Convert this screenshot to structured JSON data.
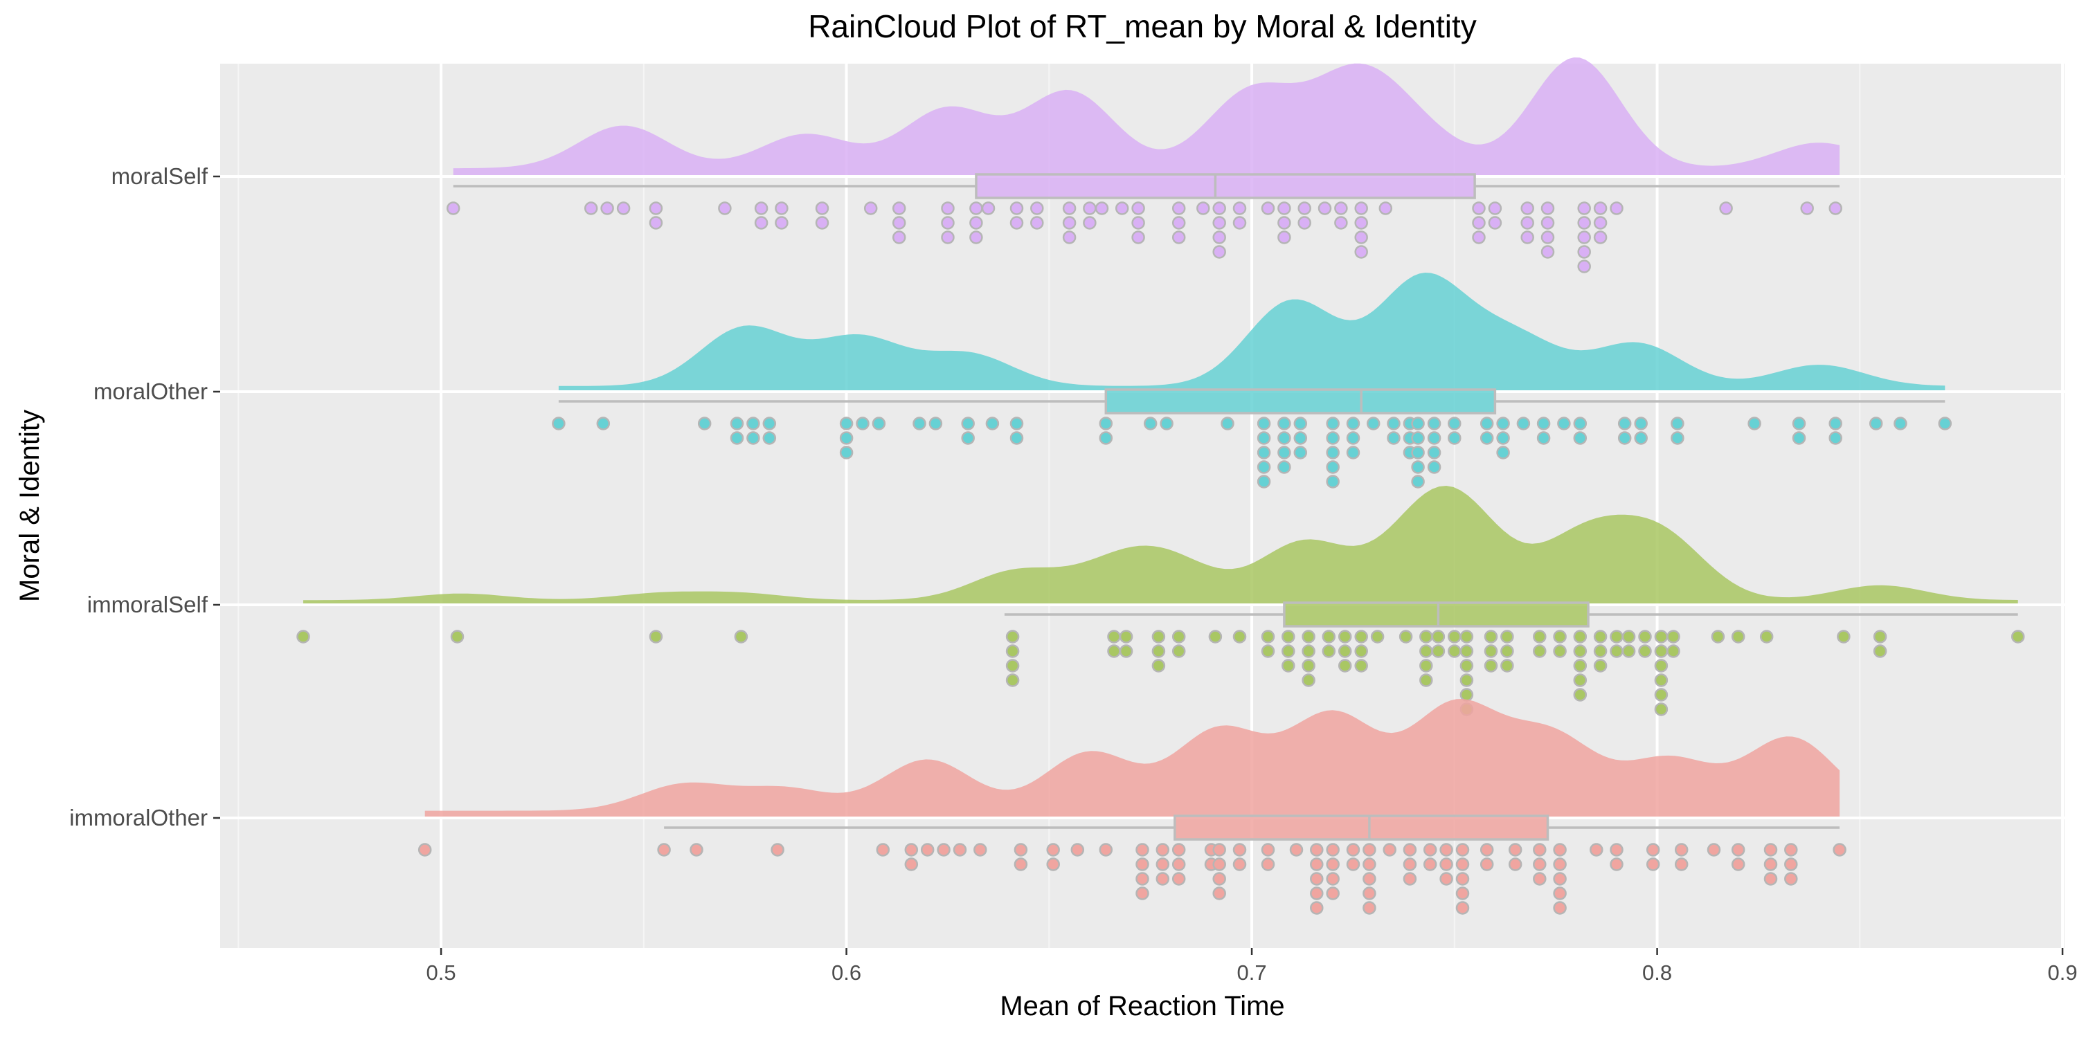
{
  "chart_data": {
    "type": "raincloud",
    "title": "RainCloud Plot of RT_mean by Moral & Identity",
    "xlabel": "Mean of Reaction Time",
    "ylabel": "Moral & Identity",
    "xlim": [
      0.4455,
      0.9005
    ],
    "x_ticks": [
      0.5,
      0.6,
      0.7,
      0.8,
      0.9
    ],
    "x_tick_labels": [
      "0.5",
      "0.6",
      "0.7",
      "0.8",
      "0.9"
    ],
    "grid": true,
    "categories": [
      "moralSelf",
      "moralOther",
      "immoralSelf",
      "immoralOther"
    ],
    "series": [
      {
        "name": "moralSelf",
        "color": "#d9b0f5",
        "box": {
          "whisker_low": 0.503,
          "q1": 0.632,
          "median": 0.691,
          "q3": 0.755,
          "whisker_high": 0.845
        },
        "density_range": [
          0.503,
          0.845
        ],
        "density_peaks": [
          [
            0.545,
            0.25
          ],
          [
            0.59,
            0.2
          ],
          [
            0.625,
            0.35
          ],
          [
            0.655,
            0.45
          ],
          [
            0.7,
            0.45
          ],
          [
            0.725,
            0.5
          ],
          [
            0.74,
            0.2
          ],
          [
            0.78,
            0.65
          ],
          [
            0.84,
            0.15
          ]
        ],
        "points": [
          {
            "x": 0.503,
            "n": 1
          },
          {
            "x": 0.537,
            "n": 1
          },
          {
            "x": 0.541,
            "n": 1
          },
          {
            "x": 0.545,
            "n": 1
          },
          {
            "x": 0.553,
            "n": 2
          },
          {
            "x": 0.57,
            "n": 1
          },
          {
            "x": 0.579,
            "n": 2
          },
          {
            "x": 0.584,
            "n": 2
          },
          {
            "x": 0.594,
            "n": 2
          },
          {
            "x": 0.606,
            "n": 1
          },
          {
            "x": 0.613,
            "n": 3
          },
          {
            "x": 0.625,
            "n": 3
          },
          {
            "x": 0.632,
            "n": 3
          },
          {
            "x": 0.635,
            "n": 1
          },
          {
            "x": 0.642,
            "n": 2
          },
          {
            "x": 0.647,
            "n": 2
          },
          {
            "x": 0.655,
            "n": 3
          },
          {
            "x": 0.66,
            "n": 2
          },
          {
            "x": 0.663,
            "n": 1
          },
          {
            "x": 0.668,
            "n": 1
          },
          {
            "x": 0.672,
            "n": 3
          },
          {
            "x": 0.682,
            "n": 3
          },
          {
            "x": 0.688,
            "n": 1
          },
          {
            "x": 0.692,
            "n": 4
          },
          {
            "x": 0.697,
            "n": 2
          },
          {
            "x": 0.704,
            "n": 1
          },
          {
            "x": 0.708,
            "n": 3
          },
          {
            "x": 0.713,
            "n": 2
          },
          {
            "x": 0.718,
            "n": 1
          },
          {
            "x": 0.722,
            "n": 2
          },
          {
            "x": 0.727,
            "n": 4
          },
          {
            "x": 0.733,
            "n": 1
          },
          {
            "x": 0.756,
            "n": 3
          },
          {
            "x": 0.76,
            "n": 2
          },
          {
            "x": 0.768,
            "n": 3
          },
          {
            "x": 0.773,
            "n": 4
          },
          {
            "x": 0.782,
            "n": 5
          },
          {
            "x": 0.786,
            "n": 3
          },
          {
            "x": 0.79,
            "n": 1
          },
          {
            "x": 0.817,
            "n": 1
          },
          {
            "x": 0.837,
            "n": 1
          },
          {
            "x": 0.844,
            "n": 1
          }
        ]
      },
      {
        "name": "moralOther",
        "color": "#66d1d4",
        "box": {
          "whisker_low": 0.529,
          "q1": 0.664,
          "median": 0.727,
          "q3": 0.76,
          "whisker_high": 0.871
        },
        "density_range": [
          0.529,
          0.871
        ],
        "density_peaks": [
          [
            0.575,
            0.55
          ],
          [
            0.603,
            0.45
          ],
          [
            0.63,
            0.3
          ],
          [
            0.71,
            0.8
          ],
          [
            0.742,
            1.0
          ],
          [
            0.765,
            0.45
          ],
          [
            0.795,
            0.4
          ],
          [
            0.84,
            0.2
          ]
        ],
        "points": [
          {
            "x": 0.529,
            "n": 1
          },
          {
            "x": 0.54,
            "n": 1
          },
          {
            "x": 0.565,
            "n": 1
          },
          {
            "x": 0.573,
            "n": 2
          },
          {
            "x": 0.577,
            "n": 2
          },
          {
            "x": 0.581,
            "n": 2
          },
          {
            "x": 0.6,
            "n": 3
          },
          {
            "x": 0.604,
            "n": 1
          },
          {
            "x": 0.608,
            "n": 1
          },
          {
            "x": 0.618,
            "n": 1
          },
          {
            "x": 0.622,
            "n": 1
          },
          {
            "x": 0.63,
            "n": 2
          },
          {
            "x": 0.636,
            "n": 1
          },
          {
            "x": 0.642,
            "n": 2
          },
          {
            "x": 0.664,
            "n": 2
          },
          {
            "x": 0.675,
            "n": 1
          },
          {
            "x": 0.679,
            "n": 1
          },
          {
            "x": 0.694,
            "n": 1
          },
          {
            "x": 0.703,
            "n": 5
          },
          {
            "x": 0.708,
            "n": 4
          },
          {
            "x": 0.712,
            "n": 3
          },
          {
            "x": 0.72,
            "n": 5
          },
          {
            "x": 0.725,
            "n": 3
          },
          {
            "x": 0.73,
            "n": 1
          },
          {
            "x": 0.735,
            "n": 2
          },
          {
            "x": 0.739,
            "n": 3
          },
          {
            "x": 0.741,
            "n": 5
          },
          {
            "x": 0.745,
            "n": 4
          },
          {
            "x": 0.75,
            "n": 2
          },
          {
            "x": 0.758,
            "n": 2
          },
          {
            "x": 0.762,
            "n": 3
          },
          {
            "x": 0.767,
            "n": 1
          },
          {
            "x": 0.772,
            "n": 2
          },
          {
            "x": 0.777,
            "n": 1
          },
          {
            "x": 0.781,
            "n": 2
          },
          {
            "x": 0.792,
            "n": 2
          },
          {
            "x": 0.796,
            "n": 2
          },
          {
            "x": 0.805,
            "n": 2
          },
          {
            "x": 0.824,
            "n": 1
          },
          {
            "x": 0.835,
            "n": 2
          },
          {
            "x": 0.844,
            "n": 2
          },
          {
            "x": 0.854,
            "n": 1
          },
          {
            "x": 0.86,
            "n": 1
          },
          {
            "x": 0.871,
            "n": 1
          }
        ]
      },
      {
        "name": "immoralSelf",
        "color": "#a9c763",
        "box": {
          "whisker_low": 0.639,
          "q1": 0.708,
          "median": 0.746,
          "q3": 0.783,
          "whisker_high": 0.889
        },
        "density_range": [
          0.466,
          0.889
        ],
        "density_peaks": [
          [
            0.505,
            0.08
          ],
          [
            0.554,
            0.08
          ],
          [
            0.574,
            0.08
          ],
          [
            0.642,
            0.35
          ],
          [
            0.667,
            0.4
          ],
          [
            0.681,
            0.4
          ],
          [
            0.713,
            0.7
          ],
          [
            0.741,
            0.65
          ],
          [
            0.752,
            0.9
          ],
          [
            0.782,
            0.75
          ],
          [
            0.801,
            0.75
          ],
          [
            0.855,
            0.18
          ]
        ],
        "points": [
          {
            "x": 0.466,
            "n": 1
          },
          {
            "x": 0.504,
            "n": 1
          },
          {
            "x": 0.553,
            "n": 1
          },
          {
            "x": 0.574,
            "n": 1
          },
          {
            "x": 0.641,
            "n": 4
          },
          {
            "x": 0.666,
            "n": 2
          },
          {
            "x": 0.669,
            "n": 2
          },
          {
            "x": 0.677,
            "n": 3
          },
          {
            "x": 0.682,
            "n": 2
          },
          {
            "x": 0.691,
            "n": 1
          },
          {
            "x": 0.697,
            "n": 1
          },
          {
            "x": 0.704,
            "n": 2
          },
          {
            "x": 0.709,
            "n": 3
          },
          {
            "x": 0.714,
            "n": 4
          },
          {
            "x": 0.719,
            "n": 2
          },
          {
            "x": 0.723,
            "n": 3
          },
          {
            "x": 0.727,
            "n": 3
          },
          {
            "x": 0.731,
            "n": 1
          },
          {
            "x": 0.738,
            "n": 1
          },
          {
            "x": 0.743,
            "n": 4
          },
          {
            "x": 0.746,
            "n": 2
          },
          {
            "x": 0.75,
            "n": 2
          },
          {
            "x": 0.753,
            "n": 6
          },
          {
            "x": 0.759,
            "n": 3
          },
          {
            "x": 0.763,
            "n": 3
          },
          {
            "x": 0.771,
            "n": 2
          },
          {
            "x": 0.776,
            "n": 2
          },
          {
            "x": 0.781,
            "n": 5
          },
          {
            "x": 0.786,
            "n": 3
          },
          {
            "x": 0.79,
            "n": 2
          },
          {
            "x": 0.793,
            "n": 2
          },
          {
            "x": 0.797,
            "n": 2
          },
          {
            "x": 0.801,
            "n": 6
          },
          {
            "x": 0.804,
            "n": 2
          },
          {
            "x": 0.815,
            "n": 1
          },
          {
            "x": 0.82,
            "n": 1
          },
          {
            "x": 0.827,
            "n": 1
          },
          {
            "x": 0.846,
            "n": 1
          },
          {
            "x": 0.855,
            "n": 2
          },
          {
            "x": 0.889,
            "n": 1
          }
        ]
      },
      {
        "name": "immoralOther",
        "color": "#f0a5a0",
        "box": {
          "whisker_low": 0.555,
          "q1": 0.681,
          "median": 0.729,
          "q3": 0.773,
          "whisker_high": 0.845
        },
        "density_range": [
          0.496,
          0.845
        ],
        "density_peaks": [
          [
            0.56,
            0.18
          ],
          [
            0.585,
            0.15
          ],
          [
            0.62,
            0.35
          ],
          [
            0.66,
            0.4
          ],
          [
            0.692,
            0.55
          ],
          [
            0.72,
            0.65
          ],
          [
            0.75,
            0.7
          ],
          [
            0.774,
            0.5
          ],
          [
            0.803,
            0.35
          ],
          [
            0.833,
            0.5
          ]
        ],
        "points": [
          {
            "x": 0.496,
            "n": 1
          },
          {
            "x": 0.555,
            "n": 1
          },
          {
            "x": 0.563,
            "n": 1
          },
          {
            "x": 0.583,
            "n": 1
          },
          {
            "x": 0.609,
            "n": 1
          },
          {
            "x": 0.616,
            "n": 2
          },
          {
            "x": 0.62,
            "n": 1
          },
          {
            "x": 0.624,
            "n": 1
          },
          {
            "x": 0.628,
            "n": 1
          },
          {
            "x": 0.633,
            "n": 1
          },
          {
            "x": 0.643,
            "n": 2
          },
          {
            "x": 0.651,
            "n": 2
          },
          {
            "x": 0.657,
            "n": 1
          },
          {
            "x": 0.664,
            "n": 1
          },
          {
            "x": 0.673,
            "n": 4
          },
          {
            "x": 0.678,
            "n": 3
          },
          {
            "x": 0.682,
            "n": 3
          },
          {
            "x": 0.69,
            "n": 2
          },
          {
            "x": 0.692,
            "n": 4
          },
          {
            "x": 0.697,
            "n": 2
          },
          {
            "x": 0.704,
            "n": 2
          },
          {
            "x": 0.711,
            "n": 1
          },
          {
            "x": 0.716,
            "n": 5
          },
          {
            "x": 0.72,
            "n": 4
          },
          {
            "x": 0.725,
            "n": 2
          },
          {
            "x": 0.729,
            "n": 5
          },
          {
            "x": 0.734,
            "n": 1
          },
          {
            "x": 0.739,
            "n": 3
          },
          {
            "x": 0.744,
            "n": 2
          },
          {
            "x": 0.748,
            "n": 3
          },
          {
            "x": 0.752,
            "n": 5
          },
          {
            "x": 0.758,
            "n": 2
          },
          {
            "x": 0.765,
            "n": 2
          },
          {
            "x": 0.771,
            "n": 3
          },
          {
            "x": 0.776,
            "n": 5
          },
          {
            "x": 0.785,
            "n": 1
          },
          {
            "x": 0.79,
            "n": 2
          },
          {
            "x": 0.799,
            "n": 2
          },
          {
            "x": 0.806,
            "n": 2
          },
          {
            "x": 0.814,
            "n": 1
          },
          {
            "x": 0.82,
            "n": 2
          },
          {
            "x": 0.828,
            "n": 3
          },
          {
            "x": 0.833,
            "n": 3
          },
          {
            "x": 0.845,
            "n": 1
          }
        ]
      }
    ]
  }
}
